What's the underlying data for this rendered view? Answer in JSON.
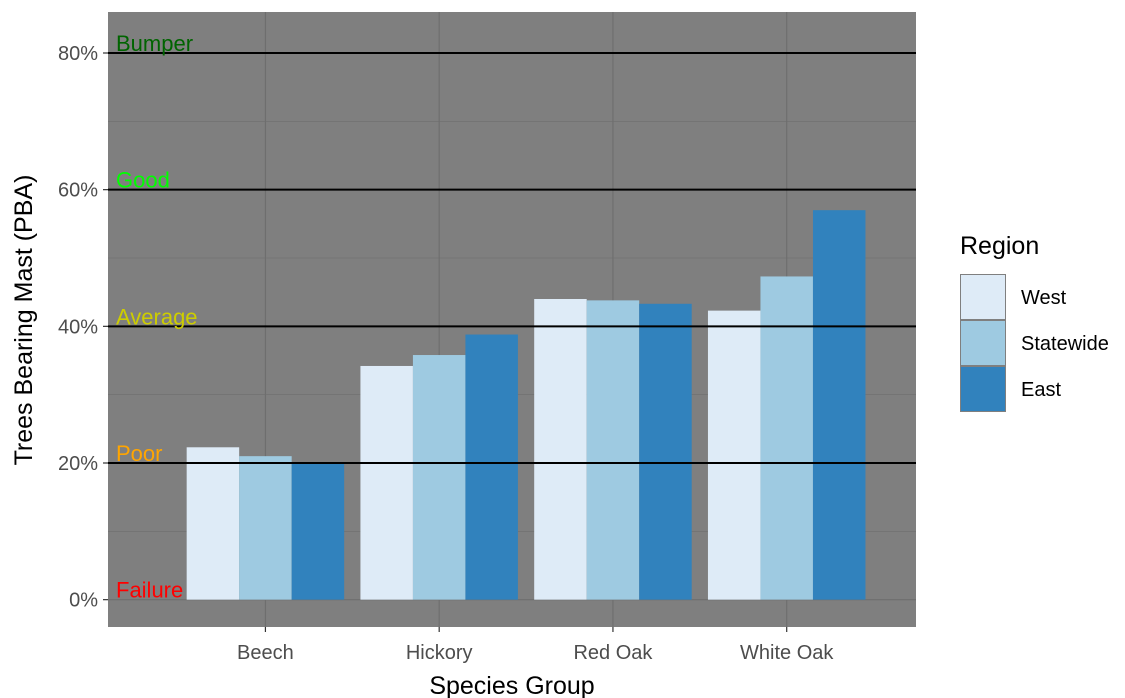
{
  "chart_data": {
    "type": "bar",
    "title": "",
    "xlabel": "Species Group",
    "ylabel": "Trees Bearing Mast (PBA)",
    "categories": [
      "Beech",
      "Hickory",
      "Red Oak",
      "White Oak"
    ],
    "series": [
      {
        "name": "West",
        "values": [
          22.3,
          34.2,
          44.0,
          42.3
        ],
        "color": "#deebf7"
      },
      {
        "name": "Statewide",
        "values": [
          21.0,
          35.8,
          43.8,
          47.3
        ],
        "color": "#9ecae1"
      },
      {
        "name": "East",
        "values": [
          20.0,
          38.8,
          43.3,
          57.0
        ],
        "color": "#3182bd"
      }
    ],
    "ylim": [
      -4,
      86
    ],
    "yticks": [
      0,
      20,
      40,
      60,
      80
    ],
    "ytick_labels": [
      "0%",
      "20%",
      "40%",
      "60%",
      "80%"
    ],
    "grid": true,
    "panel_background": "#7f7f7f",
    "reference_lines": [
      {
        "label": "Bumper",
        "value": 80,
        "color": "#006400"
      },
      {
        "label": "Good",
        "value": 60,
        "color": "#00ff00"
      },
      {
        "label": "Average",
        "value": 40,
        "color": "#cdcd00"
      },
      {
        "label": "Poor",
        "value": 20,
        "color": "#ffa500"
      },
      {
        "label": "Failure",
        "value": 0,
        "color": "#ff0000"
      }
    ],
    "legend": {
      "title": "Region",
      "position": "right"
    }
  }
}
